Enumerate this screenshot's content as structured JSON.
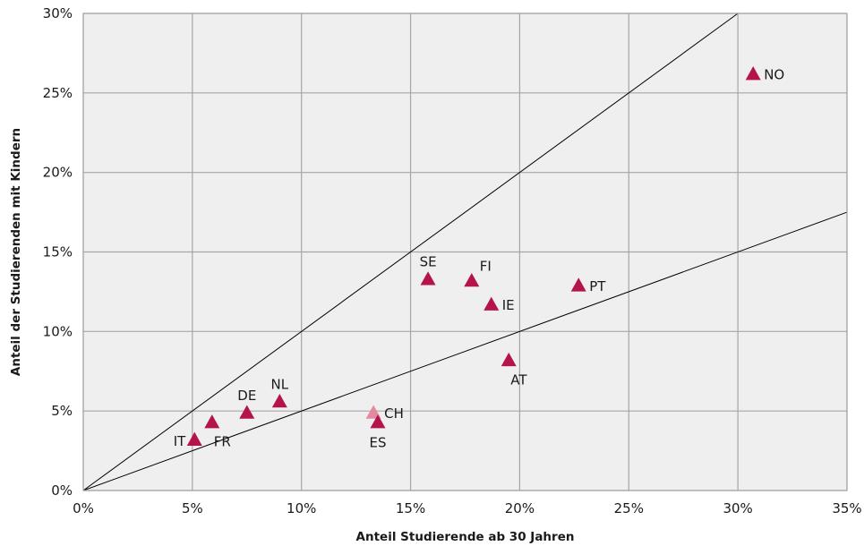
{
  "chart_data": {
    "type": "scatter",
    "xlabel": "Anteil Studierende ab 30 Jahren",
    "ylabel": "Anteil der Studierenden mit Kindern",
    "xlim": [
      0,
      35
    ],
    "ylim": [
      0,
      30
    ],
    "x_ticks": [
      0,
      5,
      10,
      15,
      20,
      25,
      30,
      35
    ],
    "y_ticks": [
      0,
      5,
      10,
      15,
      20,
      25,
      30
    ],
    "x_tick_labels": [
      "0%",
      "5%",
      "10%",
      "15%",
      "20%",
      "25%",
      "30%",
      "35%"
    ],
    "y_tick_labels": [
      "0%",
      "5%",
      "10%",
      "15%",
      "20%",
      "25%",
      "30%"
    ],
    "grid": true,
    "plot_background": "#efefef",
    "grid_color": "#a6a6a6",
    "marker": "triangle",
    "marker_color": "#b5144a",
    "marker_color_highlight": "#e38a9e",
    "points": [
      {
        "label": "IT",
        "x": 5.1,
        "y": 3.2,
        "label_pos": "left"
      },
      {
        "label": "FR",
        "x": 5.9,
        "y": 4.3,
        "label_pos": "below-right"
      },
      {
        "label": "DE",
        "x": 7.5,
        "y": 4.9,
        "label_pos": "above"
      },
      {
        "label": "NL",
        "x": 9.0,
        "y": 5.6,
        "label_pos": "above"
      },
      {
        "label": "CH",
        "x": 13.3,
        "y": 4.9,
        "label_pos": "right",
        "highlight": true
      },
      {
        "label": "ES",
        "x": 13.5,
        "y": 4.3,
        "label_pos": "below"
      },
      {
        "label": "SE",
        "x": 15.8,
        "y": 13.3,
        "label_pos": "above"
      },
      {
        "label": "FI",
        "x": 17.8,
        "y": 13.2,
        "label_pos": "above-right"
      },
      {
        "label": "IE",
        "x": 18.7,
        "y": 11.7,
        "label_pos": "right"
      },
      {
        "label": "AT",
        "x": 19.5,
        "y": 8.2,
        "label_pos": "below-right"
      },
      {
        "label": "PT",
        "x": 22.7,
        "y": 12.9,
        "label_pos": "right"
      },
      {
        "label": "NO",
        "x": 30.7,
        "y": 26.2,
        "label_pos": "right"
      }
    ],
    "reference_lines": [
      {
        "slope": 1.0,
        "intercept": 0
      },
      {
        "slope": 0.5,
        "intercept": 0
      }
    ]
  }
}
